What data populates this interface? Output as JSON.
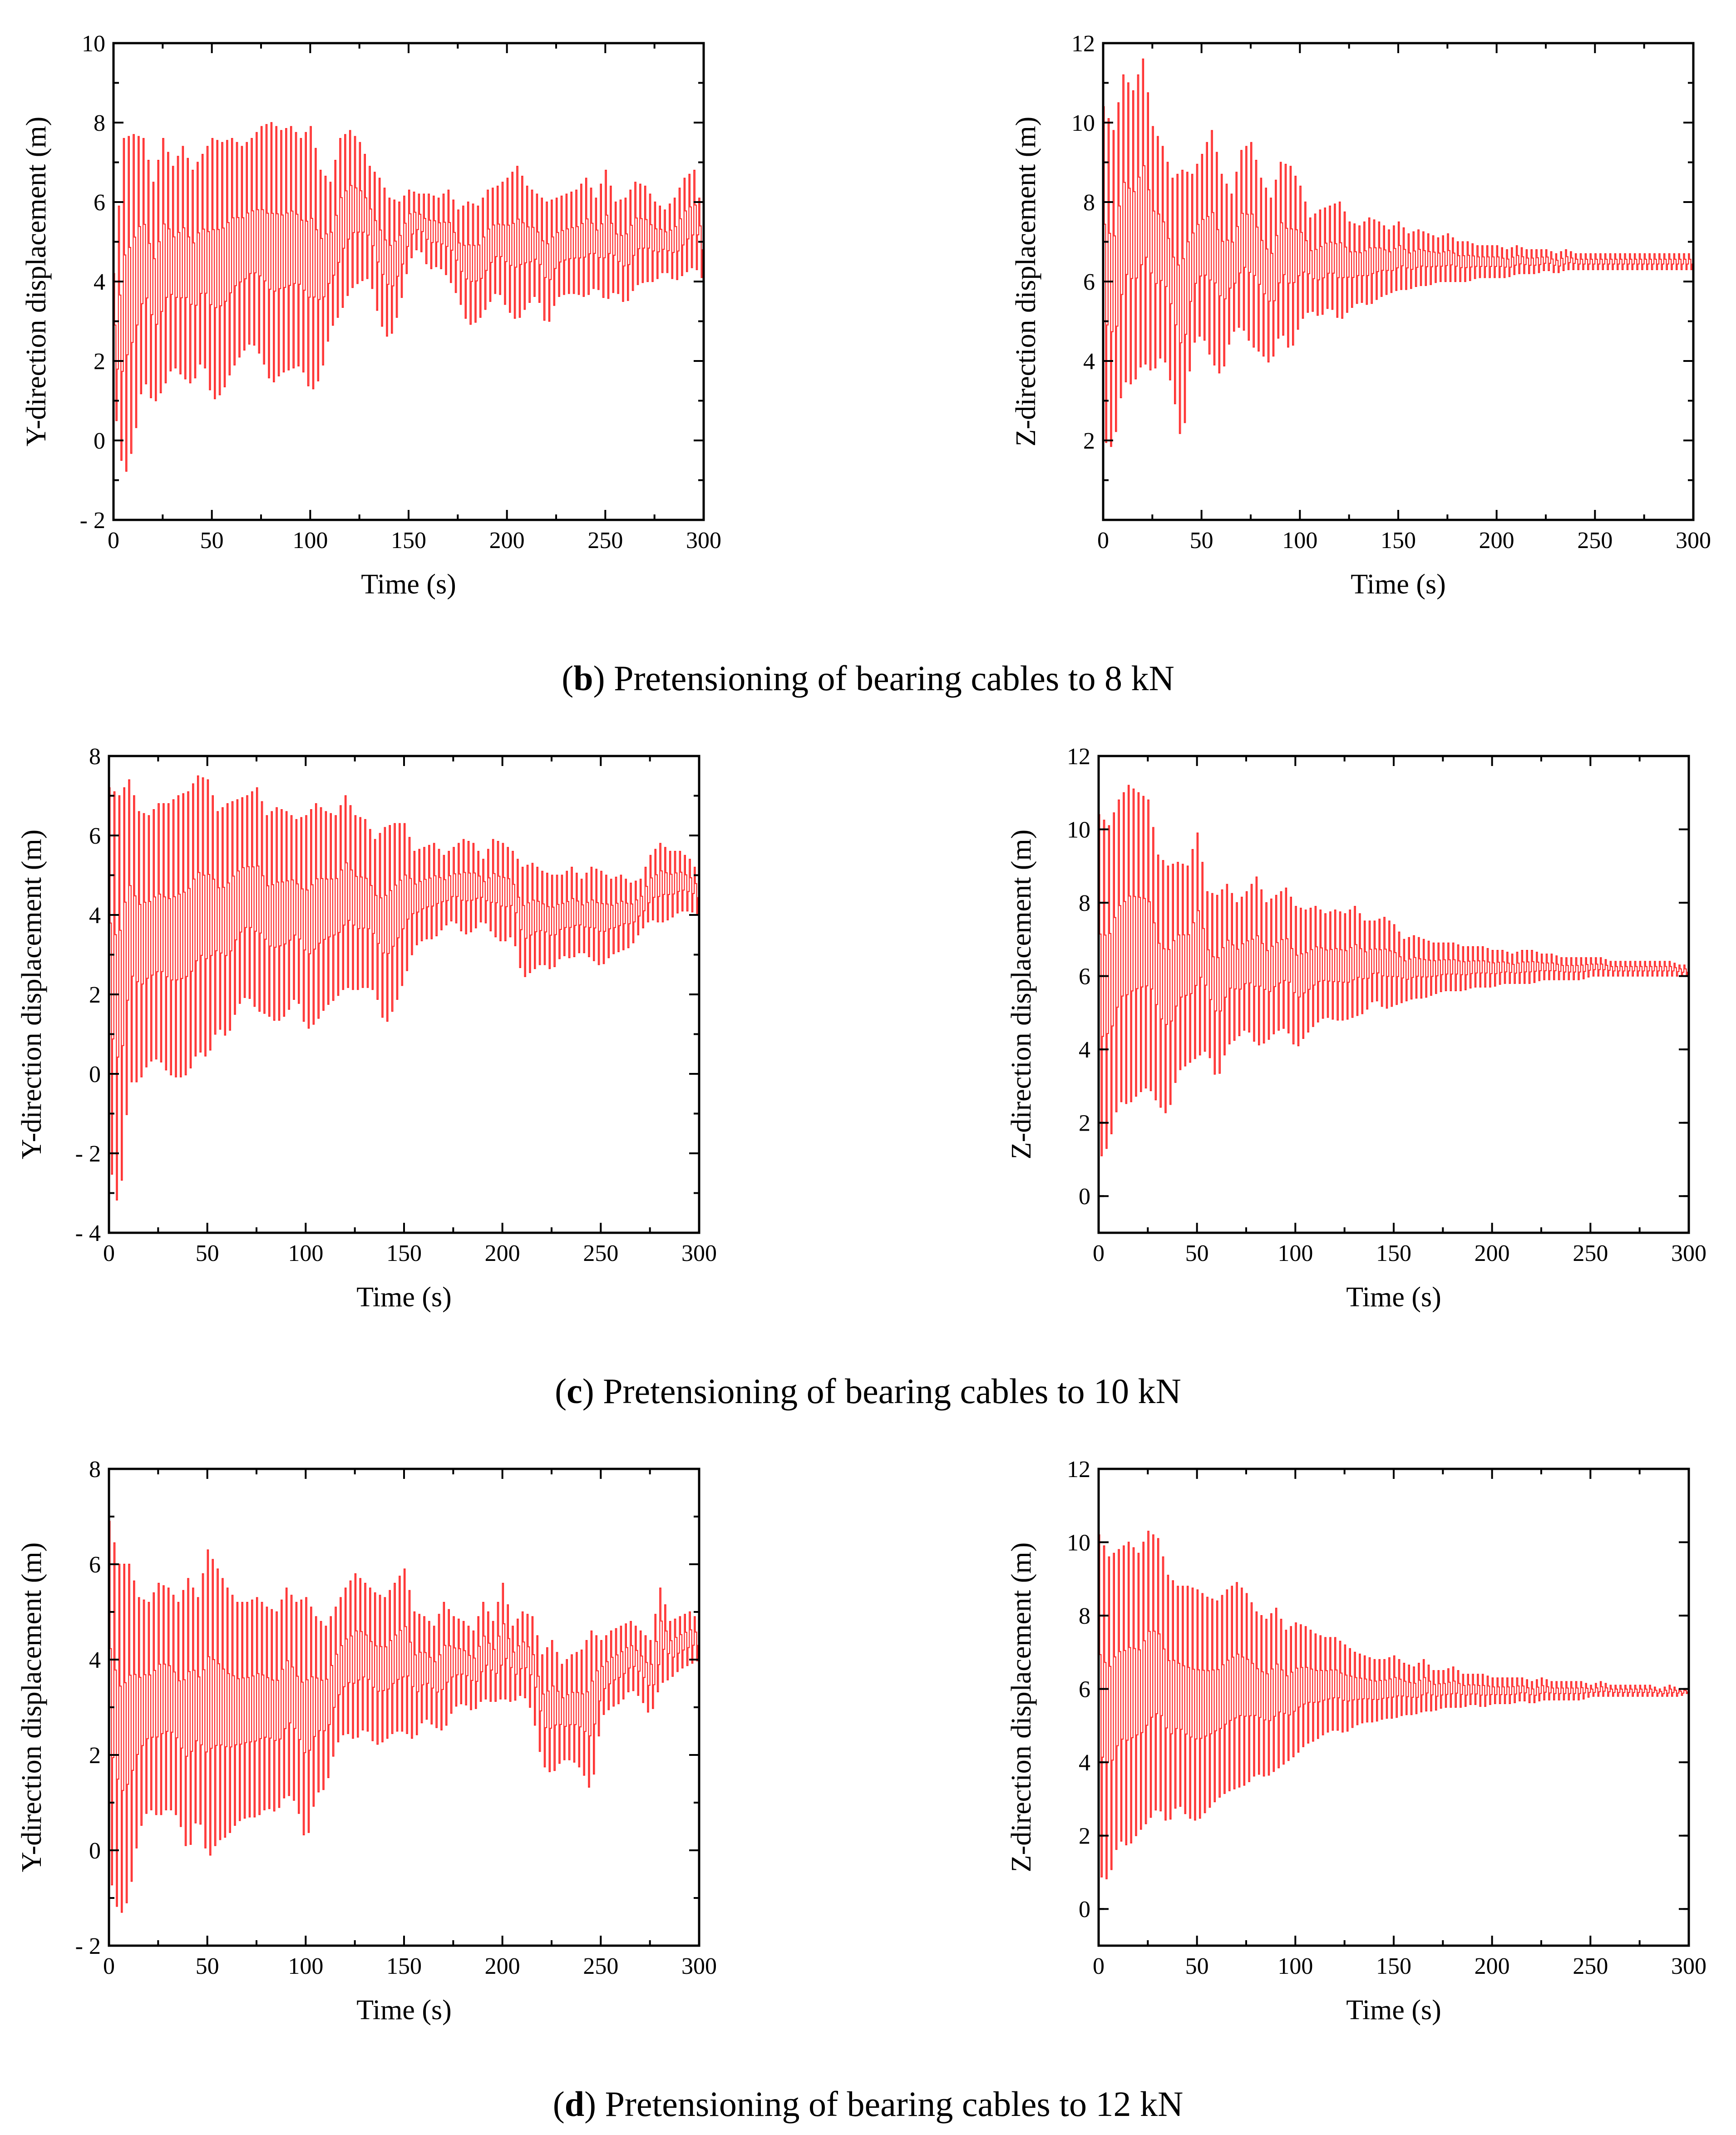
{
  "captions": [
    {
      "letter": "b",
      "text": ") Pretensioning of bearing cables to 8 kN"
    },
    {
      "letter": "c",
      "text": ") Pretensioning of bearing cables to 10 kN"
    },
    {
      "letter": "d",
      "text": ") Pretensioning of bearing cables to 12 kN"
    }
  ],
  "colors": {
    "series": "#ff2a2a",
    "axis": "#000000"
  },
  "chart_data": [
    {
      "id": "b-y",
      "type": "line",
      "panel": "b",
      "xlabel": "Time (s)",
      "ylabel": "Y-direction displacement (m)",
      "xlim": [
        0,
        300
      ],
      "ylim": [
        -2,
        10
      ],
      "xticks": [
        0,
        50,
        100,
        150,
        200,
        250,
        300
      ],
      "yticks": [
        -2,
        0,
        2,
        4,
        6,
        8,
        10
      ],
      "ytick_labels": [
        "- 2",
        "0",
        "2",
        "4",
        "6",
        "8",
        "10"
      ],
      "x": [
        0,
        5,
        10,
        15,
        20,
        25,
        30,
        35,
        40,
        45,
        50,
        55,
        60,
        65,
        70,
        75,
        80,
        85,
        90,
        95,
        100,
        105,
        110,
        115,
        120,
        125,
        130,
        135,
        140,
        145,
        150,
        155,
        160,
        165,
        170,
        175,
        180,
        185,
        190,
        195,
        200,
        205,
        210,
        215,
        220,
        225,
        230,
        235,
        240,
        245,
        250,
        255,
        260,
        265,
        270,
        275,
        280,
        285,
        290,
        295,
        300
      ],
      "upper": [
        4.2,
        7.6,
        7.7,
        7.6,
        6.5,
        7.6,
        6.9,
        7.4,
        6.8,
        7.2,
        7.6,
        7.5,
        7.6,
        7.4,
        7.6,
        7.9,
        8.0,
        7.8,
        7.9,
        7.6,
        7.9,
        6.8,
        6.5,
        7.6,
        7.8,
        7.5,
        6.9,
        6.6,
        6.1,
        6.0,
        6.3,
        6.2,
        6.2,
        6.1,
        6.3,
        5.8,
        6.0,
        5.9,
        6.3,
        6.4,
        6.6,
        6.9,
        6.4,
        6.2,
        6.0,
        6.1,
        6.2,
        6.3,
        6.6,
        6.1,
        6.8,
        6.0,
        6.1,
        6.5,
        6.4,
        6.0,
        5.8,
        6.1,
        6.6,
        6.8,
        5.4
      ],
      "lower": [
        1.0,
        -1.0,
        -0.1,
        1.6,
        0.9,
        1.3,
        1.9,
        1.6,
        1.4,
        2.1,
        1.0,
        1.2,
        1.8,
        2.2,
        2.5,
        2.1,
        1.4,
        1.7,
        1.8,
        1.9,
        1.2,
        1.6,
        2.8,
        3.2,
        3.8,
        4.0,
        4.1,
        3.0,
        2.5,
        3.3,
        4.5,
        4.9,
        4.3,
        4.4,
        4.1,
        3.6,
        2.9,
        3.0,
        3.4,
        3.8,
        3.3,
        3.0,
        3.4,
        3.7,
        2.8,
        3.6,
        3.7,
        3.7,
        3.6,
        3.9,
        3.5,
        3.8,
        3.4,
        3.9,
        4.0,
        4.0,
        4.3,
        4.0,
        4.2,
        4.4,
        4.0
      ]
    },
    {
      "id": "b-z",
      "type": "line",
      "panel": "b",
      "xlabel": "Time (s)",
      "ylabel": "Z-direction displacement (m)",
      "xlim": [
        0,
        300
      ],
      "ylim": [
        0,
        12
      ],
      "xticks": [
        0,
        50,
        100,
        150,
        200,
        250,
        300
      ],
      "yticks": [
        2,
        4,
        6,
        8,
        10,
        12
      ],
      "ytick_labels": [
        "2",
        "4",
        "6",
        "8",
        "10",
        "12"
      ],
      "x": [
        0,
        5,
        10,
        15,
        20,
        25,
        30,
        35,
        40,
        45,
        50,
        55,
        60,
        65,
        70,
        75,
        80,
        85,
        90,
        95,
        100,
        105,
        110,
        115,
        120,
        125,
        130,
        135,
        140,
        145,
        150,
        155,
        160,
        165,
        170,
        175,
        180,
        185,
        190,
        195,
        200,
        205,
        210,
        215,
        220,
        225,
        230,
        235,
        240,
        245,
        250,
        255,
        260,
        265,
        270,
        275,
        280,
        285,
        290,
        295,
        300
      ],
      "upper": [
        10.4,
        9.8,
        11.2,
        10.8,
        11.6,
        9.9,
        9.4,
        8.6,
        8.8,
        8.7,
        9.2,
        9.8,
        8.7,
        8.2,
        9.3,
        9.5,
        8.6,
        8.1,
        9.0,
        8.9,
        8.4,
        7.6,
        7.8,
        7.9,
        8.0,
        7.5,
        7.4,
        7.6,
        7.5,
        7.3,
        7.5,
        7.2,
        7.3,
        7.2,
        7.1,
        7.2,
        7.0,
        7.0,
        6.9,
        6.9,
        6.9,
        6.8,
        6.9,
        6.8,
        6.8,
        6.8,
        6.7,
        6.8,
        6.7,
        6.7,
        6.7,
        6.7,
        6.7,
        6.7,
        6.7,
        6.7,
        6.7,
        6.7,
        6.7,
        6.7,
        6.7
      ],
      "lower": [
        2.0,
        1.8,
        3.5,
        3.4,
        4.0,
        3.7,
        4.2,
        3.3,
        1.8,
        4.4,
        4.7,
        4.0,
        3.6,
        4.7,
        4.9,
        4.4,
        4.2,
        3.9,
        4.8,
        4.2,
        5.0,
        5.3,
        5.1,
        5.4,
        5.0,
        5.3,
        5.5,
        5.4,
        5.6,
        5.7,
        5.8,
        5.8,
        5.9,
        5.9,
        6.0,
        6.0,
        6.0,
        6.0,
        6.1,
        6.1,
        6.1,
        6.1,
        6.2,
        6.2,
        6.2,
        6.3,
        6.2,
        6.3,
        6.3,
        6.3,
        6.3,
        6.3,
        6.3,
        6.3,
        6.3,
        6.3,
        6.3,
        6.3,
        6.3,
        6.3,
        6.3
      ]
    },
    {
      "id": "c-y",
      "type": "line",
      "panel": "c",
      "xlabel": "Time (s)",
      "ylabel": "Y-direction displacement (m)",
      "xlim": [
        0,
        300
      ],
      "ylim": [
        -4,
        8
      ],
      "xticks": [
        0,
        50,
        100,
        150,
        200,
        250,
        300
      ],
      "yticks": [
        -4,
        -2,
        0,
        2,
        4,
        6,
        8
      ],
      "ytick_labels": [
        "- 4",
        "- 2",
        "0",
        "2",
        "4",
        "6",
        "8"
      ],
      "x": [
        0,
        5,
        10,
        15,
        20,
        25,
        30,
        35,
        40,
        45,
        50,
        55,
        60,
        65,
        70,
        75,
        80,
        85,
        90,
        95,
        100,
        105,
        110,
        115,
        120,
        125,
        130,
        135,
        140,
        145,
        150,
        155,
        160,
        165,
        170,
        175,
        180,
        185,
        190,
        195,
        200,
        205,
        210,
        215,
        220,
        225,
        230,
        235,
        240,
        245,
        250,
        255,
        260,
        265,
        270,
        275,
        280,
        285,
        290,
        295,
        300
      ],
      "upper": [
        7.2,
        7.0,
        7.4,
        6.6,
        6.5,
        6.8,
        6.8,
        7.0,
        7.1,
        7.5,
        7.4,
        6.6,
        6.8,
        6.9,
        7.0,
        7.2,
        6.5,
        6.7,
        6.6,
        6.4,
        6.5,
        6.8,
        6.6,
        6.5,
        7.0,
        6.5,
        6.4,
        5.9,
        6.2,
        6.3,
        6.3,
        5.6,
        5.7,
        5.8,
        5.5,
        5.7,
        5.9,
        5.8,
        5.4,
        5.9,
        5.8,
        5.6,
        5.2,
        5.3,
        5.1,
        5.0,
        5.0,
        5.2,
        4.9,
        5.2,
        5.1,
        4.9,
        5.0,
        4.8,
        4.9,
        5.5,
        5.8,
        5.6,
        5.6,
        5.4,
        5.0
      ],
      "lower": [
        -2.2,
        -3.5,
        -0.2,
        -0.2,
        0.3,
        0.4,
        0.0,
        -0.1,
        0.0,
        0.6,
        0.4,
        1.2,
        0.9,
        1.7,
        2.0,
        1.6,
        1.5,
        1.3,
        1.5,
        2.0,
        1.1,
        1.3,
        1.7,
        1.9,
        2.2,
        2.1,
        2.2,
        2.1,
        1.2,
        1.7,
        2.4,
        3.2,
        3.4,
        3.4,
        3.7,
        3.9,
        3.5,
        3.6,
        3.9,
        3.5,
        3.3,
        3.5,
        2.4,
        2.6,
        2.8,
        2.6,
        3.0,
        2.9,
        3.1,
        2.9,
        2.7,
        3.0,
        3.1,
        3.2,
        3.6,
        3.9,
        3.8,
        3.9,
        4.1,
        4.1,
        4.0
      ]
    },
    {
      "id": "c-z",
      "type": "line",
      "panel": "c",
      "xlabel": "Time (s)",
      "ylabel": "Z-direction displacement (m)",
      "xlim": [
        0,
        300
      ],
      "ylim": [
        -1,
        12
      ],
      "xticks": [
        0,
        50,
        100,
        150,
        200,
        250,
        300
      ],
      "yticks": [
        0,
        2,
        4,
        6,
        8,
        10,
        12
      ],
      "ytick_labels": [
        "0",
        "2",
        "4",
        "6",
        "8",
        "10",
        "12"
      ],
      "x": [
        0,
        5,
        10,
        15,
        20,
        25,
        30,
        35,
        40,
        45,
        50,
        55,
        60,
        65,
        70,
        75,
        80,
        85,
        90,
        95,
        100,
        105,
        110,
        115,
        120,
        125,
        130,
        135,
        140,
        145,
        150,
        155,
        160,
        165,
        170,
        175,
        180,
        185,
        190,
        195,
        200,
        205,
        210,
        215,
        220,
        225,
        230,
        235,
        240,
        245,
        250,
        255,
        260,
        265,
        270,
        275,
        280,
        285,
        290,
        295,
        300
      ],
      "upper": [
        10.4,
        10.1,
        10.8,
        11.2,
        11.0,
        10.8,
        9.3,
        9.0,
        9.1,
        9.0,
        9.9,
        8.3,
        8.2,
        8.5,
        8.0,
        8.3,
        8.7,
        8.0,
        8.2,
        8.4,
        7.9,
        7.8,
        7.9,
        7.7,
        7.8,
        7.7,
        7.9,
        7.5,
        7.5,
        7.6,
        7.4,
        7.0,
        7.1,
        7.0,
        6.9,
        6.9,
        6.9,
        6.8,
        6.8,
        6.8,
        6.7,
        6.7,
        6.6,
        6.7,
        6.7,
        6.6,
        6.6,
        6.5,
        6.5,
        6.5,
        6.5,
        6.5,
        6.4,
        6.4,
        6.4,
        6.4,
        6.4,
        6.4,
        6.4,
        6.3,
        6.3
      ],
      "lower": [
        1.0,
        1.4,
        2.6,
        2.5,
        2.8,
        3.0,
        2.5,
        2.2,
        3.4,
        3.6,
        3.8,
        4.0,
        3.1,
        4.1,
        4.3,
        4.6,
        4.1,
        4.2,
        4.5,
        4.6,
        4.0,
        4.4,
        4.7,
        4.9,
        4.8,
        4.8,
        4.9,
        5.0,
        5.4,
        5.1,
        5.2,
        5.3,
        5.4,
        5.4,
        5.5,
        5.6,
        5.6,
        5.6,
        5.7,
        5.7,
        5.7,
        5.8,
        5.8,
        5.8,
        5.8,
        5.9,
        5.9,
        5.9,
        5.9,
        5.9,
        6.0,
        6.0,
        6.0,
        6.0,
        6.0,
        6.0,
        6.0,
        6.0,
        6.0,
        6.0,
        6.0
      ]
    },
    {
      "id": "d-y",
      "type": "line",
      "panel": "d",
      "xlabel": "Time (s)",
      "ylabel": "Y-direction displacement (m)",
      "xlim": [
        0,
        300
      ],
      "ylim": [
        -2,
        8
      ],
      "xticks": [
        0,
        50,
        100,
        150,
        200,
        250,
        300
      ],
      "yticks": [
        -2,
        0,
        2,
        4,
        6,
        8
      ],
      "ytick_labels": [
        "- 2",
        "0",
        "2",
        "4",
        "6",
        "8"
      ],
      "x": [
        0,
        5,
        10,
        15,
        20,
        25,
        30,
        35,
        40,
        45,
        50,
        55,
        60,
        65,
        70,
        75,
        80,
        85,
        90,
        95,
        100,
        105,
        110,
        115,
        120,
        125,
        130,
        135,
        140,
        145,
        150,
        155,
        160,
        165,
        170,
        175,
        180,
        185,
        190,
        195,
        200,
        205,
        210,
        215,
        220,
        225,
        230,
        235,
        240,
        245,
        250,
        255,
        260,
        265,
        270,
        275,
        280,
        285,
        290,
        295,
        300
      ],
      "upper": [
        6.9,
        6.0,
        6.0,
        5.3,
        5.2,
        5.6,
        5.5,
        5.2,
        5.7,
        5.3,
        6.3,
        5.9,
        5.5,
        5.2,
        5.2,
        5.3,
        5.1,
        5.0,
        5.5,
        5.2,
        5.3,
        4.9,
        4.7,
        5.1,
        5.5,
        5.8,
        5.6,
        5.4,
        5.3,
        5.6,
        5.9,
        5.0,
        4.9,
        4.7,
        5.2,
        4.9,
        4.8,
        4.6,
        5.2,
        4.8,
        5.6,
        4.7,
        5.0,
        4.9,
        4.1,
        4.4,
        3.9,
        4.1,
        4.2,
        4.6,
        4.4,
        4.6,
        4.7,
        4.8,
        4.6,
        4.4,
        5.5,
        4.8,
        4.9,
        5.0,
        4.8
      ],
      "lower": [
        -0.5,
        -1.4,
        -1.0,
        0.4,
        0.9,
        0.7,
        0.9,
        0.7,
        -0.1,
        0.8,
        -0.2,
        0.2,
        0.3,
        0.6,
        0.7,
        0.7,
        0.9,
        0.8,
        1.2,
        1.0,
        0.1,
        1.2,
        1.3,
        2.2,
        2.5,
        2.3,
        2.6,
        2.2,
        2.3,
        2.5,
        2.5,
        2.3,
        2.8,
        2.6,
        2.5,
        3.0,
        3.1,
        2.9,
        3.2,
        3.1,
        3.2,
        3.1,
        3.3,
        2.9,
        1.8,
        1.6,
        1.9,
        1.9,
        1.7,
        1.2,
        2.8,
        3.0,
        3.1,
        3.4,
        3.2,
        2.8,
        3.5,
        3.6,
        3.8,
        3.9,
        4.0
      ]
    },
    {
      "id": "d-z",
      "type": "line",
      "panel": "d",
      "xlabel": "Time (s)",
      "ylabel": "Z-direction displacement (m)",
      "xlim": [
        0,
        300
      ],
      "ylim": [
        -1,
        12
      ],
      "xticks": [
        0,
        50,
        100,
        150,
        200,
        250,
        300
      ],
      "yticks": [
        0,
        2,
        4,
        6,
        8,
        10,
        12
      ],
      "ytick_labels": [
        "0",
        "2",
        "4",
        "6",
        "8",
        "10",
        "12"
      ],
      "x": [
        0,
        5,
        10,
        15,
        20,
        25,
        30,
        35,
        40,
        45,
        50,
        55,
        60,
        65,
        70,
        75,
        80,
        85,
        90,
        95,
        100,
        105,
        110,
        115,
        120,
        125,
        130,
        135,
        140,
        145,
        150,
        155,
        160,
        165,
        170,
        175,
        180,
        185,
        190,
        195,
        200,
        205,
        210,
        215,
        220,
        225,
        230,
        235,
        240,
        245,
        250,
        255,
        260,
        265,
        270,
        275,
        280,
        285,
        290,
        295,
        300
      ],
      "upper": [
        10.2,
        9.6,
        9.8,
        10.0,
        9.7,
        10.3,
        10.1,
        9.1,
        8.8,
        8.8,
        8.7,
        8.5,
        8.4,
        8.7,
        8.9,
        8.6,
        8.1,
        7.9,
        8.2,
        7.6,
        7.8,
        7.7,
        7.5,
        7.4,
        7.4,
        7.2,
        7.0,
        6.9,
        6.8,
        6.8,
        6.9,
        6.7,
        6.6,
        6.8,
        6.5,
        6.5,
        6.6,
        6.4,
        6.4,
        6.4,
        6.3,
        6.3,
        6.3,
        6.3,
        6.2,
        6.3,
        6.2,
        6.2,
        6.2,
        6.2,
        6.1,
        6.2,
        6.1,
        6.1,
        6.1,
        6.1,
        6.1,
        6.0,
        6.1,
        6.0,
        6.0
      ],
      "lower": [
        0.9,
        0.8,
        1.9,
        1.7,
        2.1,
        2.4,
        2.8,
        2.3,
        2.9,
        2.5,
        2.4,
        2.7,
        3.0,
        3.2,
        3.3,
        3.4,
        3.7,
        3.6,
        3.8,
        4.0,
        4.2,
        4.5,
        4.6,
        4.8,
        4.9,
        4.8,
        5.0,
        5.1,
        5.1,
        5.2,
        5.2,
        5.3,
        5.3,
        5.4,
        5.4,
        5.5,
        5.5,
        5.5,
        5.6,
        5.5,
        5.6,
        5.6,
        5.6,
        5.7,
        5.6,
        5.7,
        5.7,
        5.7,
        5.7,
        5.7,
        5.8,
        5.8,
        5.8,
        5.8,
        5.8,
        5.8,
        5.8,
        5.8,
        5.8,
        5.8,
        5.9
      ]
    }
  ]
}
